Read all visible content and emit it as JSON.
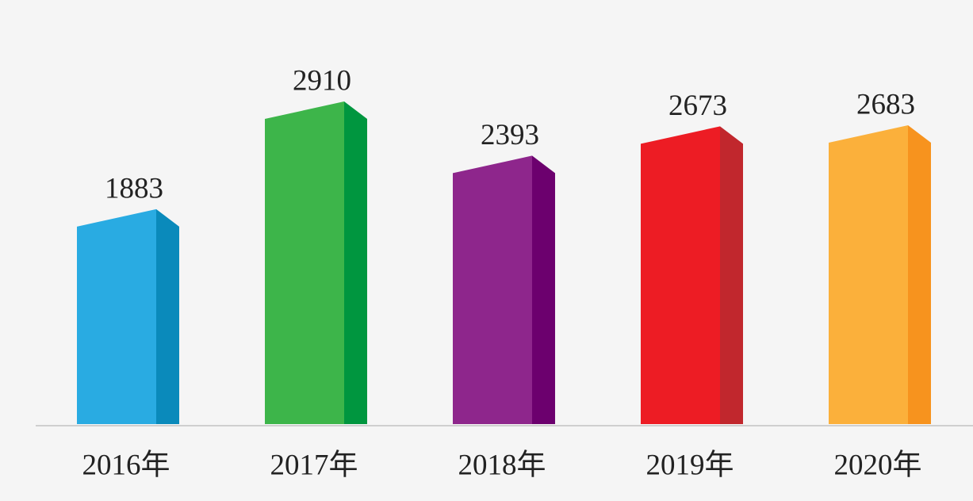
{
  "chart_data": {
    "type": "bar3d",
    "categories": [
      "2016年",
      "2017年",
      "2018年",
      "2019年",
      "2020年"
    ],
    "values": [
      1883,
      2910,
      2393,
      2673,
      2683
    ],
    "colors": [
      "#29abe2",
      "#3db54a",
      "#8e268c",
      "#ed1c24",
      "#fbb03b"
    ],
    "side_colors": [
      "#0a8abb",
      "#00963f",
      "#6c006e",
      "#c1272d",
      "#f7931e"
    ]
  }
}
